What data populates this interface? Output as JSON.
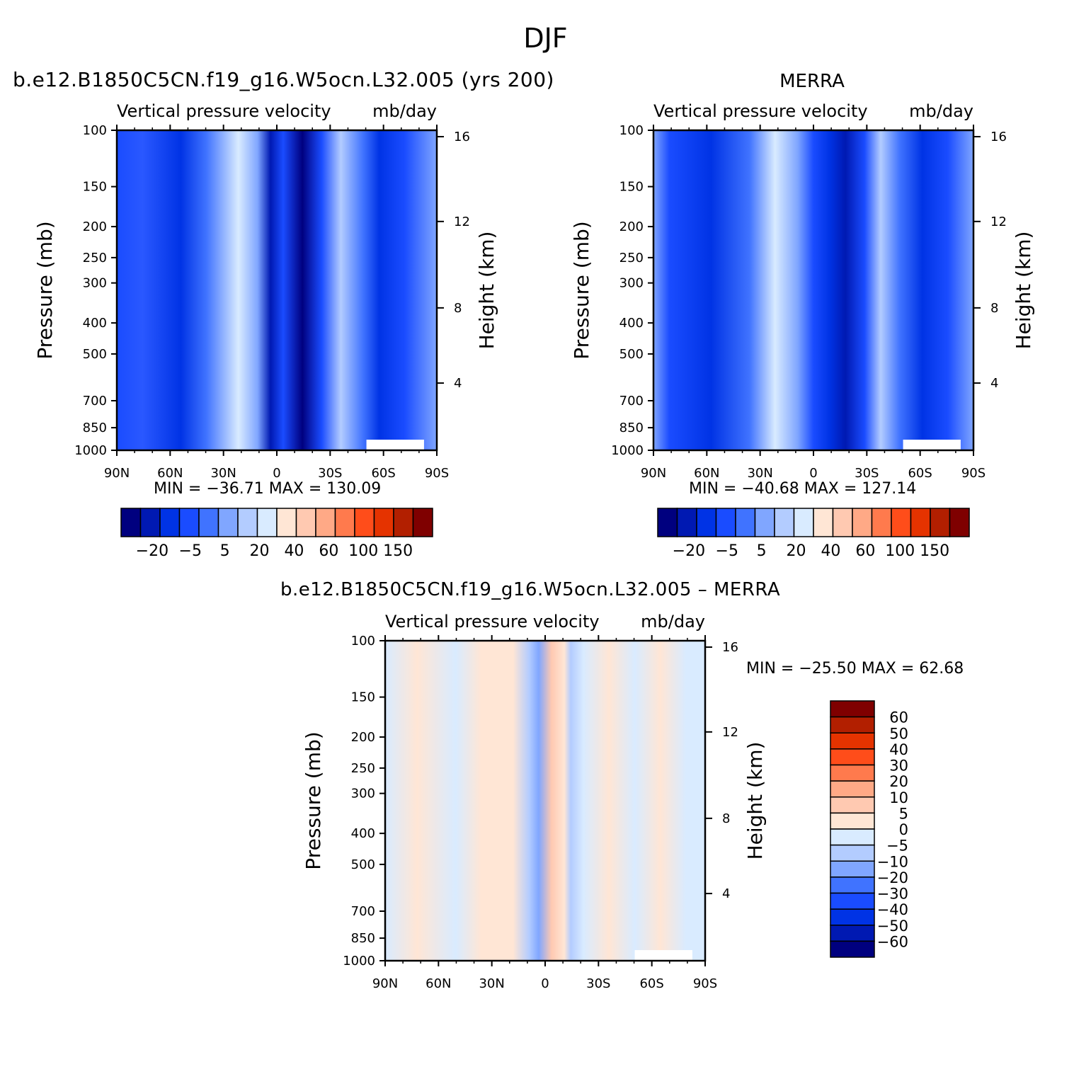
{
  "figure": {
    "season": "DJF",
    "left_title": "b.e12.B1850C5CN.f19_g16.W5ocn.L32.005 (yrs 200)",
    "right_title": "MERRA",
    "bottom_title": "b.e12.B1850C5CN.f19_g16.W5ocn.L32.005 – MERRA"
  },
  "chart_data": [
    {
      "type": "heatmap",
      "panel": "model",
      "title": "b.e12.B1850C5CN.f19_g16.W5ocn.L32.005 (yrs 200)",
      "subtitle_left": "Vertical pressure velocity",
      "subtitle_right": "mb/day",
      "xlabel": "",
      "ylabel": "Pressure (mb)",
      "y2label": "Height (km)",
      "x_ticklabels": [
        "90N",
        "60N",
        "30N",
        "0",
        "30S",
        "60S",
        "90S"
      ],
      "x_range": [
        90,
        -90
      ],
      "y_ticklabels": [
        "100",
        "150",
        "200",
        "250",
        "300",
        "400",
        "500",
        "700",
        "850",
        "1000"
      ],
      "y_range_mb": [
        1000,
        100
      ],
      "y_scale": "log",
      "y2_ticklabels": [
        "4",
        "8",
        "12",
        "16"
      ],
      "stats": "MIN = −36.71   MAX = 130.09",
      "min": -36.71,
      "max": 130.09,
      "colorbar_labels": [
        "−20",
        "−5",
        "5",
        "20",
        "40",
        "60",
        "100",
        "150"
      ],
      "colorbar_colors": [
        "#00007f",
        "#0019b2",
        "#0033e5",
        "#1a4cff",
        "#4073ff",
        "#80a6ff",
        "#b3ccff",
        "#d9ebff",
        "#ffe6d5",
        "#ffc9b1",
        "#ffa986",
        "#ff7a4d",
        "#ff4d1a",
        "#e53300",
        "#b21f00",
        "#7f0000"
      ]
    },
    {
      "type": "heatmap",
      "panel": "obs",
      "title": "MERRA",
      "subtitle_left": "Vertical pressure velocity",
      "subtitle_right": "mb/day",
      "xlabel": "",
      "ylabel": "Pressure (mb)",
      "y2label": "Height (km)",
      "x_ticklabels": [
        "90N",
        "60N",
        "30N",
        "0",
        "30S",
        "60S",
        "90S"
      ],
      "x_range": [
        90,
        -90
      ],
      "y_ticklabels": [
        "100",
        "150",
        "200",
        "250",
        "300",
        "400",
        "500",
        "700",
        "850",
        "1000"
      ],
      "y_range_mb": [
        1000,
        100
      ],
      "y_scale": "log",
      "y2_ticklabels": [
        "4",
        "8",
        "12",
        "16"
      ],
      "stats": "MIN = −40.68   MAX = 127.14",
      "min": -40.68,
      "max": 127.14,
      "colorbar_labels": [
        "−20",
        "−5",
        "5",
        "20",
        "40",
        "60",
        "100",
        "150"
      ],
      "colorbar_colors": [
        "#00007f",
        "#0019b2",
        "#0033e5",
        "#1a4cff",
        "#4073ff",
        "#80a6ff",
        "#b3ccff",
        "#d9ebff",
        "#ffe6d5",
        "#ffc9b1",
        "#ffa986",
        "#ff7a4d",
        "#ff4d1a",
        "#e53300",
        "#b21f00",
        "#7f0000"
      ]
    },
    {
      "type": "heatmap",
      "panel": "difference",
      "title": "b.e12.B1850C5CN.f19_g16.W5ocn.L32.005 – MERRA",
      "subtitle_left": "Vertical pressure velocity",
      "subtitle_right": "mb/day",
      "xlabel": "",
      "ylabel": "Pressure (mb)",
      "y2label": "Height (km)",
      "x_ticklabels": [
        "90N",
        "60N",
        "30N",
        "0",
        "30S",
        "60S",
        "90S"
      ],
      "x_range": [
        90,
        -90
      ],
      "y_ticklabels": [
        "100",
        "150",
        "200",
        "250",
        "300",
        "400",
        "500",
        "700",
        "850",
        "1000"
      ],
      "y_range_mb": [
        1000,
        100
      ],
      "y_scale": "log",
      "y2_ticklabels": [
        "4",
        "8",
        "12",
        "16"
      ],
      "stats": "MIN = −25.50   MAX =   62.68",
      "min": -25.5,
      "max": 62.68,
      "colorbar_labels": [
        "60",
        "50",
        "40",
        "30",
        "20",
        "10",
        "5",
        "0",
        "−5",
        "−10",
        "−20",
        "−30",
        "−40",
        "−50",
        "−60"
      ],
      "colorbar_colors": [
        "#7f0000",
        "#b21f00",
        "#e53300",
        "#ff4d1a",
        "#ff7a4d",
        "#ffa986",
        "#ffc9b1",
        "#ffe6d5",
        "#d9ebff",
        "#b3ccff",
        "#80a6ff",
        "#4073ff",
        "#1a4cff",
        "#0033e5",
        "#0019b2",
        "#00007f"
      ]
    }
  ]
}
